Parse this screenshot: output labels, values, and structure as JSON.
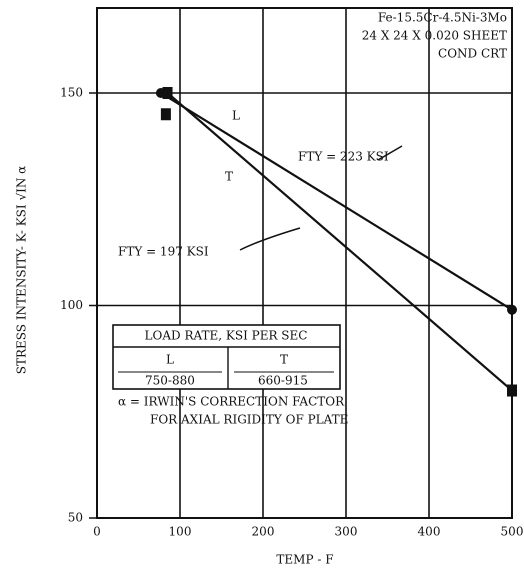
{
  "chart_data": {
    "type": "line",
    "ylabel": "STRESS INTENSITY- K- KSI √IN α",
    "xlabel": "TEMP - F",
    "xlim": [
      0,
      500
    ],
    "xticks": [
      0,
      100,
      200,
      300,
      400,
      500
    ],
    "ylim": [
      50,
      170
    ],
    "yticks": [
      50,
      100,
      150
    ],
    "grid": true,
    "series": [
      {
        "name": "L",
        "color": "#111111",
        "marker": "circle",
        "x": [
          77,
          500
        ],
        "values": [
          150,
          99
        ]
      },
      {
        "name": "T",
        "color": "#111111",
        "marker": "square",
        "x": [
          85,
          500
        ],
        "values": [
          150,
          80
        ]
      }
    ],
    "extra_points": {
      "marker": "square",
      "x": [
        83
      ],
      "values": [
        145
      ]
    },
    "annotations": {
      "material": [
        "Fe-15.5Cr-4.5Ni-3Mo",
        "24 X 24 X 0.020 SHEET",
        "COND CRT"
      ],
      "fty_l": "FTY = 223 KSI",
      "fty_t": "FTY = 197 KSI"
    },
    "legend_box": {
      "title": "LOAD RATE, KSI PER SEC",
      "columns": [
        {
          "name": "L",
          "range": "750-880"
        },
        {
          "name": "T",
          "range": "660-915"
        }
      ],
      "note": [
        "α =  IRWIN'S CORRECTION FACTOR",
        "FOR AXIAL RIGIDITY OF PLATE"
      ]
    }
  }
}
